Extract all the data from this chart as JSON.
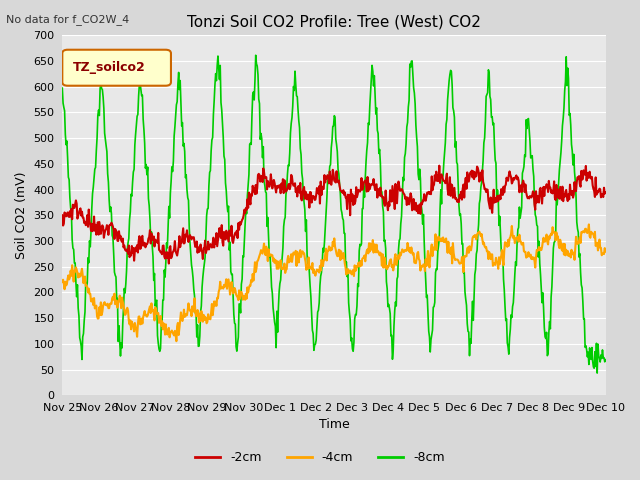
{
  "title": "Tonzi Soil CO2 Profile: Tree (West) CO2",
  "subtitle": "No data for f_CO2W_4",
  "xlabel": "Time",
  "ylabel": "Soil CO2 (mV)",
  "ylim": [
    0,
    700
  ],
  "yticks": [
    0,
    50,
    100,
    150,
    200,
    250,
    300,
    350,
    400,
    450,
    500,
    550,
    600,
    650,
    700
  ],
  "line_colors": {
    "2cm": "#cc0000",
    "4cm": "#ffa500",
    "8cm": "#00cc00"
  },
  "line_labels": [
    "-2cm",
    "-4cm",
    "-8cm"
  ],
  "legend_label": "TZ_soilco2",
  "legend_box_color": "#ffffcc",
  "legend_box_edge": "#cc6600",
  "background_color": "#e8e8e8",
  "plot_bg_color": "#e0e0e0",
  "title_fontsize": 11,
  "axis_fontsize": 9,
  "tick_fontsize": 8
}
